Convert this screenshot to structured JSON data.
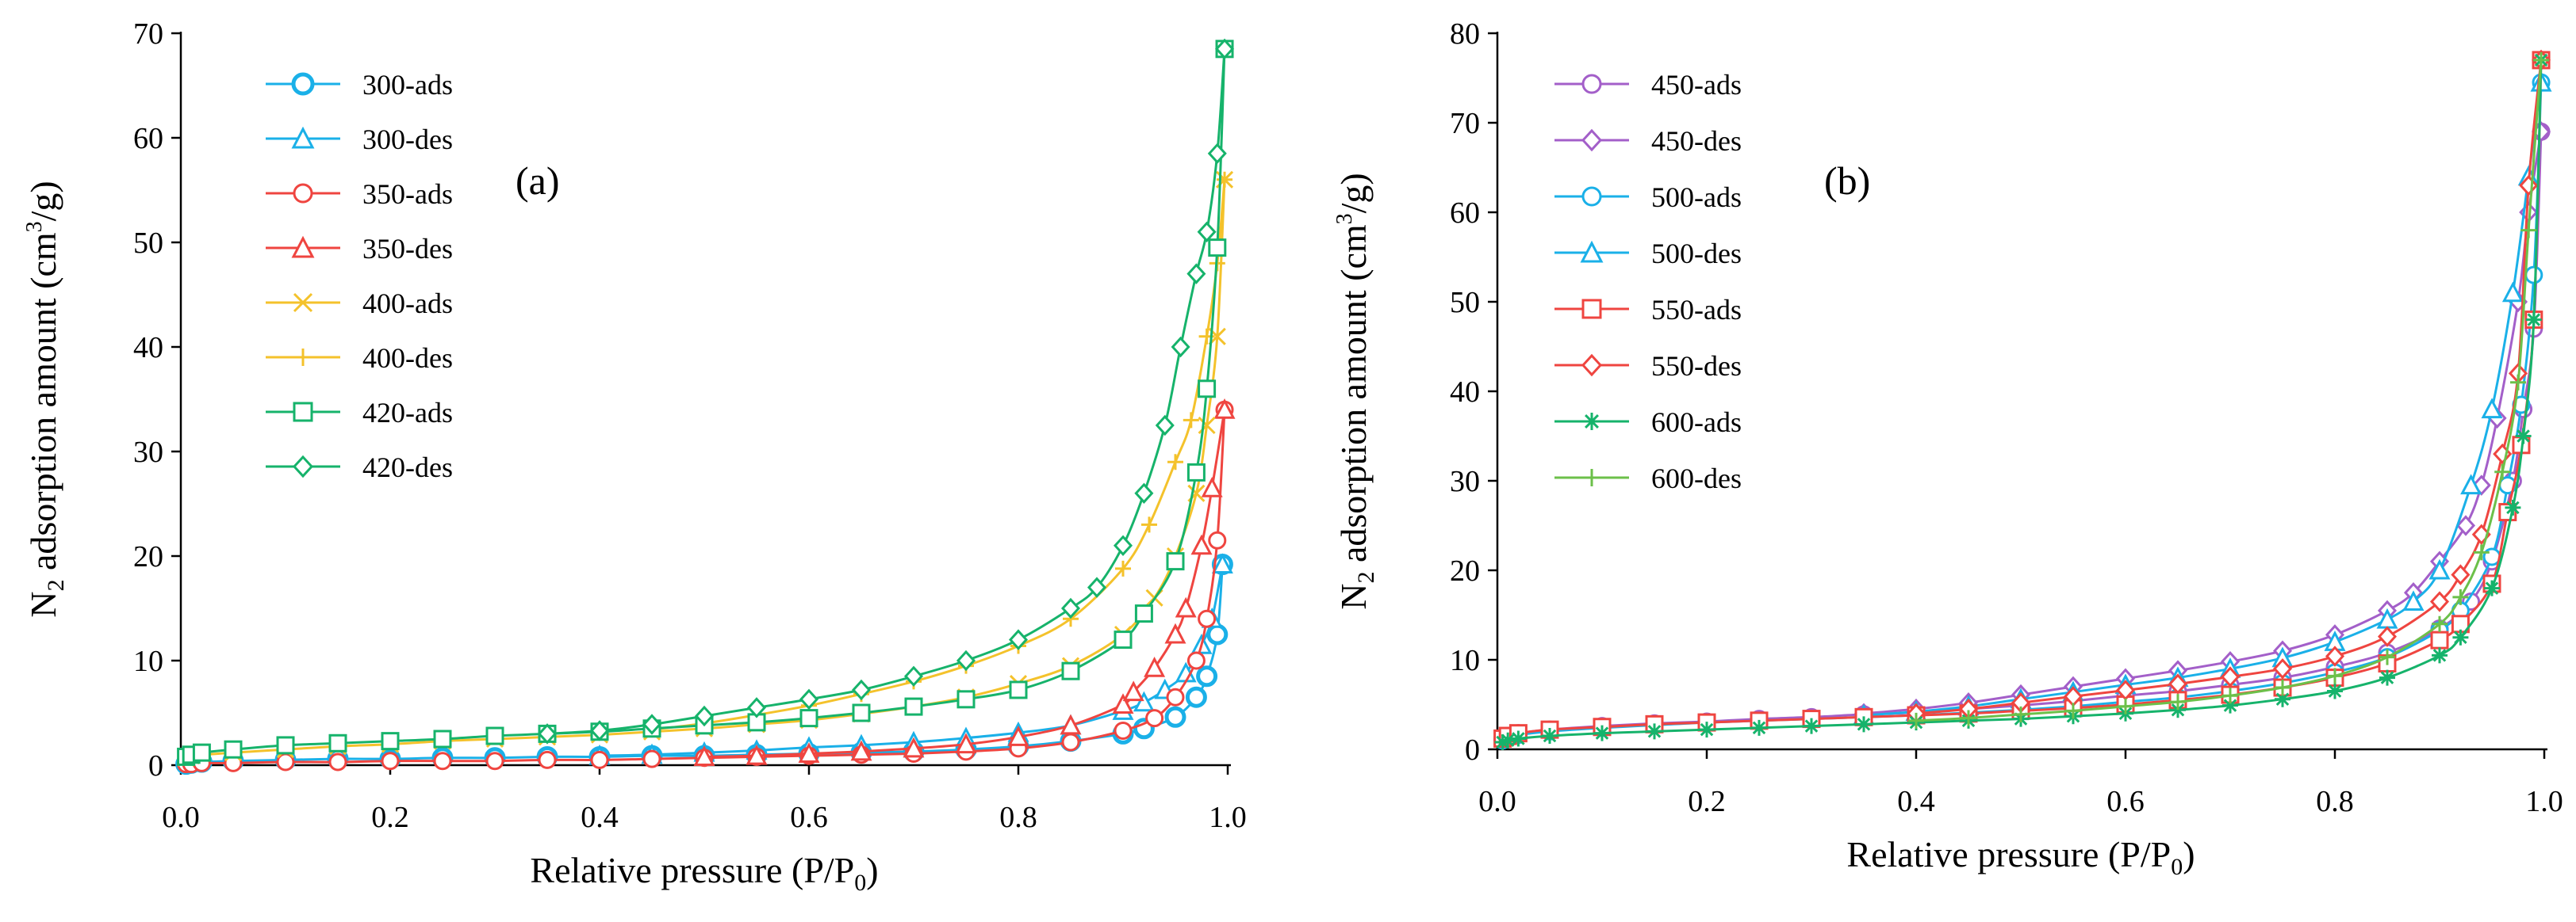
{
  "colors": {
    "300": "#1ab0e8",
    "350": "#ef4540",
    "400": "#f4c22b",
    "420": "#16b36b",
    "450": "#a35fc9",
    "500": "#1ab0e8",
    "550": "#ef4540",
    "600": "#16b36b",
    "600des": "#6cc04a"
  },
  "chart_data": [
    {
      "type": "line",
      "panel_label": "(a)",
      "xlabel": {
        "pre": "Relative pressure (P/P",
        "sub": "0",
        "post": ")"
      },
      "ylabel": {
        "pre": "N",
        "sub": "2",
        "mid": " adsorption amount (cm",
        "sup": "3",
        "post": "/g)"
      },
      "xlim": [
        0,
        1
      ],
      "ylim": [
        0,
        70
      ],
      "xticks": [
        "0.0",
        "0.2",
        "0.4",
        "0.6",
        "0.8",
        "1.0"
      ],
      "yticks": [
        "0",
        "10",
        "20",
        "30",
        "40",
        "50",
        "60",
        "70"
      ],
      "legend_position": "top-left",
      "series": [
        {
          "name": "300-ads",
          "color": "#1ab0e8",
          "marker": "circle-bold",
          "x": [
            0.005,
            0.01,
            0.02,
            0.05,
            0.1,
            0.15,
            0.2,
            0.25,
            0.3,
            0.35,
            0.4,
            0.45,
            0.5,
            0.55,
            0.6,
            0.65,
            0.7,
            0.75,
            0.8,
            0.85,
            0.9,
            0.92,
            0.95,
            0.97,
            0.98,
            0.99,
            0.995
          ],
          "y": [
            0.1,
            0.2,
            0.3,
            0.4,
            0.5,
            0.6,
            0.6,
            0.7,
            0.7,
            0.8,
            0.8,
            0.9,
            0.9,
            1.0,
            1.1,
            1.2,
            1.3,
            1.5,
            1.8,
            2.3,
            3.0,
            3.5,
            4.6,
            6.5,
            8.5,
            12.5,
            19.2
          ]
        },
        {
          "name": "300-des",
          "color": "#1ab0e8",
          "marker": "triangle",
          "x": [
            0.4,
            0.45,
            0.5,
            0.55,
            0.6,
            0.65,
            0.7,
            0.75,
            0.8,
            0.85,
            0.9,
            0.92,
            0.94,
            0.96,
            0.975,
            0.985,
            0.995
          ],
          "y": [
            0.9,
            1.0,
            1.2,
            1.4,
            1.7,
            1.9,
            2.2,
            2.6,
            3.1,
            3.8,
            5.2,
            6.0,
            7.2,
            8.8,
            11.5,
            14.0,
            19.2
          ]
        },
        {
          "name": "350-ads",
          "color": "#ef4540",
          "marker": "circle",
          "x": [
            0.005,
            0.01,
            0.02,
            0.05,
            0.1,
            0.15,
            0.2,
            0.25,
            0.3,
            0.35,
            0.4,
            0.45,
            0.5,
            0.55,
            0.6,
            0.65,
            0.7,
            0.75,
            0.8,
            0.85,
            0.9,
            0.93,
            0.95,
            0.97,
            0.98,
            0.99,
            0.997
          ],
          "y": [
            0.1,
            0.1,
            0.2,
            0.2,
            0.3,
            0.3,
            0.4,
            0.4,
            0.4,
            0.5,
            0.5,
            0.6,
            0.7,
            0.8,
            0.9,
            1.0,
            1.1,
            1.3,
            1.6,
            2.2,
            3.3,
            4.5,
            6.5,
            10.0,
            14.0,
            21.5,
            34.0
          ]
        },
        {
          "name": "350-des",
          "color": "#ef4540",
          "marker": "triangle",
          "x": [
            0.5,
            0.55,
            0.6,
            0.65,
            0.7,
            0.75,
            0.8,
            0.85,
            0.9,
            0.91,
            0.93,
            0.95,
            0.96,
            0.975,
            0.985,
            0.997
          ],
          "y": [
            0.8,
            0.9,
            1.1,
            1.3,
            1.6,
            2.0,
            2.7,
            3.8,
            5.8,
            7.0,
            9.3,
            12.5,
            15.0,
            21.0,
            26.5,
            34.0
          ]
        },
        {
          "name": "400-ads",
          "color": "#f4c22b",
          "marker": "cross",
          "x": [
            0.005,
            0.01,
            0.05,
            0.1,
            0.15,
            0.2,
            0.25,
            0.3,
            0.35,
            0.4,
            0.45,
            0.5,
            0.55,
            0.6,
            0.65,
            0.7,
            0.75,
            0.8,
            0.85,
            0.9,
            0.93,
            0.95,
            0.97,
            0.98,
            0.99,
            0.997
          ],
          "y": [
            0.7,
            0.9,
            1.2,
            1.5,
            1.8,
            2.0,
            2.3,
            2.5,
            2.7,
            2.9,
            3.2,
            3.5,
            3.9,
            4.3,
            4.9,
            5.6,
            6.5,
            7.8,
            9.5,
            12.5,
            16.0,
            20.0,
            26.0,
            32.5,
            41.0,
            56.0
          ]
        },
        {
          "name": "400-des",
          "color": "#f4c22b",
          "marker": "plus",
          "x": [
            0.45,
            0.5,
            0.55,
            0.6,
            0.65,
            0.7,
            0.75,
            0.8,
            0.85,
            0.9,
            0.925,
            0.95,
            0.965,
            0.98,
            0.99,
            0.997
          ],
          "y": [
            3.4,
            4.0,
            4.8,
            5.7,
            6.8,
            8.0,
            9.5,
            11.4,
            14.0,
            18.8,
            23.0,
            29.0,
            33.0,
            41.0,
            48.0,
            56.0
          ]
        },
        {
          "name": "420-ads",
          "color": "#16b36b",
          "marker": "square",
          "x": [
            0.005,
            0.01,
            0.02,
            0.05,
            0.1,
            0.15,
            0.2,
            0.25,
            0.3,
            0.35,
            0.4,
            0.45,
            0.5,
            0.55,
            0.6,
            0.65,
            0.7,
            0.75,
            0.8,
            0.85,
            0.9,
            0.92,
            0.95,
            0.97,
            0.98,
            0.99,
            0.997
          ],
          "y": [
            0.8,
            1.0,
            1.2,
            1.5,
            1.9,
            2.1,
            2.3,
            2.5,
            2.8,
            3.0,
            3.2,
            3.5,
            3.8,
            4.1,
            4.5,
            5.0,
            5.6,
            6.3,
            7.2,
            9.0,
            12.0,
            14.5,
            19.5,
            28.0,
            36.0,
            49.5,
            68.5
          ]
        },
        {
          "name": "420-des",
          "color": "#16b36b",
          "marker": "diamond",
          "x": [
            0.35,
            0.4,
            0.45,
            0.5,
            0.55,
            0.6,
            0.65,
            0.7,
            0.75,
            0.8,
            0.85,
            0.875,
            0.9,
            0.92,
            0.94,
            0.955,
            0.97,
            0.98,
            0.99,
            0.997
          ],
          "y": [
            3.0,
            3.3,
            3.9,
            4.7,
            5.5,
            6.3,
            7.2,
            8.5,
            10.0,
            12.0,
            15.0,
            17.0,
            21.0,
            26.0,
            32.5,
            40.0,
            47.0,
            51.0,
            58.5,
            68.5
          ]
        }
      ]
    },
    {
      "type": "line",
      "panel_label": "(b)",
      "xlabel": {
        "pre": "Relative pressure (P/P",
        "sub": "0",
        "post": ")"
      },
      "ylabel": {
        "pre": "N",
        "sub": "2",
        "mid": " adsorption amount (cm",
        "sup": "3",
        "post": "/g)"
      },
      "xlim": [
        0,
        1
      ],
      "ylim": [
        0,
        80
      ],
      "xticks": [
        "0.0",
        "0.2",
        "0.4",
        "0.6",
        "0.8",
        "1.0"
      ],
      "yticks": [
        "0",
        "10",
        "20",
        "30",
        "40",
        "50",
        "60",
        "70",
        "80"
      ],
      "legend_position": "top-left",
      "series": [
        {
          "name": "450-ads",
          "color": "#a35fc9",
          "marker": "circle",
          "x": [
            0.005,
            0.01,
            0.02,
            0.05,
            0.1,
            0.15,
            0.2,
            0.25,
            0.3,
            0.35,
            0.4,
            0.45,
            0.5,
            0.55,
            0.6,
            0.65,
            0.7,
            0.75,
            0.8,
            0.85,
            0.9,
            0.93,
            0.95,
            0.97,
            0.98,
            0.99,
            0.997
          ],
          "y": [
            1.2,
            1.5,
            1.8,
            2.2,
            2.6,
            2.9,
            3.1,
            3.4,
            3.6,
            3.9,
            4.1,
            4.5,
            4.9,
            5.4,
            6.0,
            6.5,
            7.2,
            8.0,
            9.2,
            10.8,
            13.5,
            16.5,
            21.0,
            30.0,
            38.0,
            47.0,
            69.0
          ]
        },
        {
          "name": "450-des",
          "color": "#a35fc9",
          "marker": "diamond",
          "x": [
            0.35,
            0.4,
            0.45,
            0.5,
            0.55,
            0.6,
            0.65,
            0.7,
            0.75,
            0.8,
            0.85,
            0.875,
            0.9,
            0.925,
            0.94,
            0.955,
            0.975,
            0.985,
            0.997
          ],
          "y": [
            4.0,
            4.5,
            5.2,
            6.1,
            7.0,
            7.9,
            8.8,
            9.8,
            11.0,
            12.8,
            15.5,
            17.5,
            21.0,
            25.0,
            29.5,
            37.0,
            50.0,
            60.0,
            69.0
          ]
        },
        {
          "name": "500-ads",
          "color": "#1ab0e8",
          "marker": "circle",
          "x": [
            0.005,
            0.01,
            0.02,
            0.05,
            0.1,
            0.15,
            0.2,
            0.25,
            0.3,
            0.35,
            0.4,
            0.45,
            0.5,
            0.55,
            0.6,
            0.65,
            0.7,
            0.75,
            0.8,
            0.85,
            0.9,
            0.92,
            0.95,
            0.965,
            0.978,
            0.99,
            0.997
          ],
          "y": [
            1.0,
            1.3,
            1.6,
            2.0,
            2.4,
            2.7,
            3.0,
            3.2,
            3.4,
            3.6,
            3.8,
            4.1,
            4.4,
            4.8,
            5.3,
            5.8,
            6.5,
            7.4,
            8.6,
            10.3,
            13.3,
            15.5,
            21.5,
            29.5,
            38.5,
            53.0,
            74.5
          ]
        },
        {
          "name": "500-des",
          "color": "#1ab0e8",
          "marker": "triangle",
          "x": [
            0.35,
            0.4,
            0.45,
            0.5,
            0.55,
            0.6,
            0.65,
            0.7,
            0.75,
            0.8,
            0.85,
            0.875,
            0.9,
            0.93,
            0.95,
            0.97,
            0.985,
            0.997
          ],
          "y": [
            3.8,
            4.2,
            4.8,
            5.6,
            6.4,
            7.2,
            8.0,
            9.0,
            10.2,
            12.0,
            14.5,
            16.5,
            20.0,
            29.5,
            38.0,
            51.0,
            64.0,
            74.5
          ]
        },
        {
          "name": "550-ads",
          "color": "#ef4540",
          "marker": "square",
          "x": [
            0.005,
            0.01,
            0.02,
            0.05,
            0.1,
            0.15,
            0.2,
            0.25,
            0.3,
            0.35,
            0.4,
            0.45,
            0.5,
            0.55,
            0.6,
            0.65,
            0.7,
            0.75,
            0.8,
            0.85,
            0.9,
            0.92,
            0.95,
            0.965,
            0.978,
            0.99,
            0.997
          ],
          "y": [
            1.2,
            1.5,
            1.8,
            2.2,
            2.5,
            2.8,
            3.0,
            3.2,
            3.4,
            3.6,
            3.8,
            4.0,
            4.3,
            4.6,
            5.0,
            5.5,
            6.1,
            6.9,
            8.0,
            9.6,
            12.2,
            14.0,
            18.5,
            26.5,
            34.0,
            48.0,
            77.0
          ]
        },
        {
          "name": "550-des",
          "color": "#ef4540",
          "marker": "diamond",
          "x": [
            0.4,
            0.45,
            0.5,
            0.55,
            0.6,
            0.65,
            0.7,
            0.75,
            0.8,
            0.85,
            0.9,
            0.92,
            0.94,
            0.96,
            0.975,
            0.985,
            0.997
          ],
          "y": [
            4.0,
            4.5,
            5.2,
            5.9,
            6.6,
            7.3,
            8.1,
            9.0,
            10.4,
            12.6,
            16.5,
            19.5,
            24.0,
            33.0,
            42.0,
            63.0,
            77.0
          ]
        },
        {
          "name": "600-ads",
          "color": "#16b36b",
          "marker": "star",
          "x": [
            0.005,
            0.01,
            0.02,
            0.05,
            0.1,
            0.15,
            0.2,
            0.25,
            0.3,
            0.35,
            0.4,
            0.45,
            0.5,
            0.55,
            0.6,
            0.65,
            0.7,
            0.75,
            0.8,
            0.85,
            0.9,
            0.92,
            0.95,
            0.97,
            0.98,
            0.99,
            0.997
          ],
          "y": [
            0.8,
            1.0,
            1.2,
            1.5,
            1.8,
            2.0,
            2.2,
            2.4,
            2.6,
            2.8,
            3.0,
            3.2,
            3.4,
            3.7,
            4.0,
            4.4,
            4.9,
            5.6,
            6.5,
            8.0,
            10.5,
            12.5,
            18.0,
            27.0,
            35.0,
            48.0,
            77.0
          ]
        },
        {
          "name": "600-des",
          "color": "#6cc04a",
          "marker": "plus",
          "x": [
            0.4,
            0.45,
            0.5,
            0.55,
            0.6,
            0.65,
            0.7,
            0.75,
            0.8,
            0.85,
            0.9,
            0.92,
            0.94,
            0.96,
            0.975,
            0.985,
            0.997
          ],
          "y": [
            3.2,
            3.5,
            3.9,
            4.3,
            4.8,
            5.3,
            6.0,
            6.9,
            8.2,
            10.3,
            14.0,
            17.0,
            22.0,
            31.0,
            41.0,
            58.0,
            77.0
          ]
        }
      ]
    }
  ]
}
